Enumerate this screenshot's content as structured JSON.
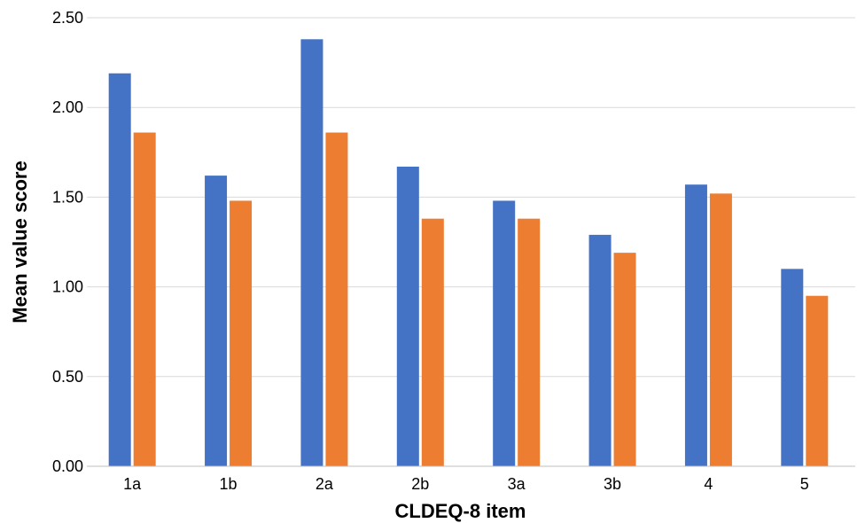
{
  "chart_data": {
    "type": "bar",
    "title": "",
    "xlabel": "CLDEQ-8 item",
    "ylabel": "Mean value score",
    "categories": [
      "1a",
      "1b",
      "2a",
      "2b",
      "3a",
      "3b",
      "4",
      "5"
    ],
    "series": [
      {
        "color": "#4472C4",
        "values": [
          2.19,
          1.62,
          2.38,
          1.67,
          1.48,
          1.29,
          1.57,
          1.1
        ]
      },
      {
        "color": "#ED7D31",
        "values": [
          1.86,
          1.48,
          1.86,
          1.38,
          1.38,
          1.19,
          1.52,
          0.95
        ]
      }
    ],
    "ylim": [
      0,
      2.5
    ],
    "yticks": [
      "0.00",
      "0.50",
      "1.00",
      "1.50",
      "2.00",
      "2.50"
    ],
    "ytick_values": [
      0,
      0.5,
      1.0,
      1.5,
      2.0,
      2.5
    ],
    "grid": true,
    "legend": "none"
  }
}
